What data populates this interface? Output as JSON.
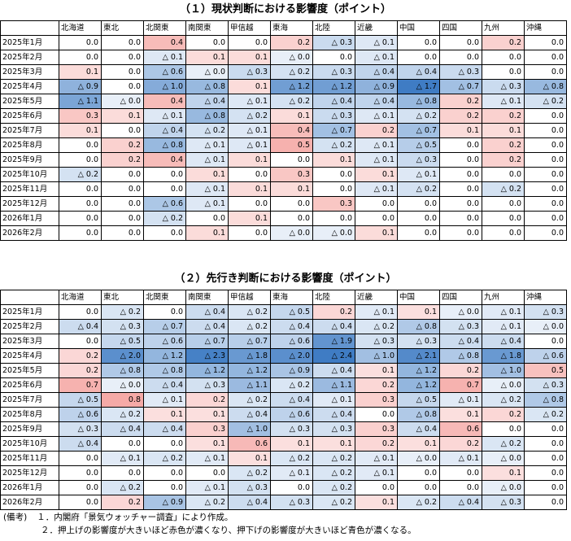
{
  "regions": [
    "北海道",
    "東北",
    "北関東",
    "南関東",
    "甲信越",
    "東海",
    "北陸",
    "近畿",
    "中国",
    "四国",
    "九州",
    "沖縄"
  ],
  "months": [
    "2025年1月",
    "2025年2月",
    "2025年3月",
    "2025年4月",
    "2025年5月",
    "2025年6月",
    "2025年7月",
    "2025年8月",
    "2025年9月",
    "2025年10月",
    "2025年11月",
    "2025年12月",
    "2026年1月",
    "2026年2月"
  ],
  "negative_prefix": "△",
  "colors": {
    "positive": "#e8322a",
    "negative": "#3f7cc4"
  },
  "current": {
    "title": "（１）現状判断における影響度（ポイント）",
    "values": [
      [
        0.0,
        0.0,
        0.4,
        0.0,
        0.0,
        0.2,
        -0.3,
        -0.1,
        0.0,
        0.0,
        0.2,
        0.0
      ],
      [
        0.0,
        0.0,
        -0.1,
        0.1,
        0.1,
        -0.0,
        0.0,
        -0.1,
        0.0,
        0.0,
        0.0,
        0.0
      ],
      [
        0.1,
        0.0,
        -0.6,
        -0.0,
        -0.3,
        -0.2,
        -0.3,
        -0.4,
        -0.4,
        -0.3,
        0.0,
        0.0
      ],
      [
        -0.9,
        0.0,
        -1.0,
        -0.8,
        0.1,
        -1.2,
        -1.2,
        -0.9,
        -1.7,
        -0.7,
        -0.3,
        -0.8
      ],
      [
        -1.1,
        -0.0,
        0.4,
        -0.4,
        -0.1,
        -0.2,
        -0.4,
        -0.4,
        -0.8,
        0.2,
        -0.1,
        -0.2
      ],
      [
        0.3,
        0.1,
        -0.1,
        -0.8,
        -0.2,
        0.1,
        -0.3,
        -0.1,
        -0.2,
        0.2,
        0.2,
        0.0
      ],
      [
        0.1,
        0.0,
        -0.4,
        -0.2,
        -0.1,
        0.4,
        -0.7,
        0.2,
        -0.7,
        0.1,
        0.1,
        0.0
      ],
      [
        0.0,
        0.2,
        -0.8,
        -0.1,
        -0.1,
        0.5,
        -0.2,
        -0.1,
        -0.5,
        0.0,
        0.2,
        0.0
      ],
      [
        0.0,
        0.2,
        0.4,
        -0.1,
        0.1,
        0.0,
        0.1,
        -0.1,
        -0.3,
        0.0,
        0.2,
        0.0
      ],
      [
        -0.2,
        0.0,
        0.0,
        0.1,
        0.0,
        0.3,
        0.0,
        0.1,
        -0.1,
        0.0,
        0.0,
        0.0
      ],
      [
        0.0,
        0.0,
        0.0,
        -0.1,
        0.1,
        0.1,
        0.0,
        -0.1,
        -0.2,
        0.0,
        -0.2,
        0.0
      ],
      [
        0.0,
        0.0,
        -0.6,
        -0.1,
        0.0,
        0.0,
        0.3,
        0.0,
        0.0,
        0.0,
        0.0,
        0.0
      ],
      [
        0.0,
        0.0,
        -0.2,
        0.0,
        0.1,
        0.0,
        0.0,
        0.0,
        0.0,
        0.0,
        0.0,
        0.0
      ],
      [
        0.0,
        0.0,
        0.0,
        0.1,
        0.0,
        -0.0,
        -0.0,
        0.1,
        0.0,
        0.0,
        0.0,
        0.0
      ]
    ]
  },
  "outlook": {
    "title": "（２）先行き判断における影響度（ポイント）",
    "values": [
      [
        0.0,
        -0.2,
        0.0,
        -0.4,
        -0.2,
        -0.5,
        0.2,
        -0.1,
        0.1,
        -0.0,
        -0.1,
        -0.3
      ],
      [
        -0.4,
        -0.3,
        -0.7,
        -0.4,
        -0.2,
        -0.4,
        -0.4,
        -0.2,
        -0.8,
        -0.3,
        -0.1,
        -0.0
      ],
      [
        0.0,
        -0.5,
        -0.6,
        -0.7,
        -0.7,
        -0.6,
        -1.9,
        -0.3,
        -0.3,
        -0.4,
        -0.4,
        0.0
      ],
      [
        0.2,
        -2.0,
        -1.2,
        -2.3,
        -1.8,
        -2.0,
        -2.4,
        -1.0,
        -2.1,
        -0.8,
        -1.8,
        -0.6
      ],
      [
        0.2,
        -0.8,
        -0.8,
        -1.2,
        -1.2,
        -0.9,
        -0.4,
        0.1,
        -1.2,
        0.2,
        -1.0,
        0.5
      ],
      [
        0.7,
        -0.0,
        -0.4,
        -0.3,
        -1.1,
        -0.2,
        -1.1,
        0.2,
        -1.2,
        0.7,
        -0.0,
        -0.3
      ],
      [
        -0.5,
        0.8,
        -0.1,
        0.2,
        -0.2,
        -0.4,
        -0.1,
        0.3,
        -0.5,
        -0.1,
        -0.2,
        -0.8
      ],
      [
        -0.6,
        -0.2,
        0.1,
        0.1,
        -0.4,
        -0.6,
        -0.4,
        0.0,
        -0.8,
        0.1,
        0.2,
        -0.2
      ],
      [
        -0.3,
        -0.4,
        -0.4,
        0.3,
        -1.0,
        -0.3,
        -0.3,
        0.3,
        -0.4,
        0.6,
        0.0,
        0.0
      ],
      [
        -0.4,
        0.0,
        0.0,
        0.1,
        0.6,
        0.1,
        0.1,
        0.2,
        0.1,
        0.2,
        -0.2,
        0.0
      ],
      [
        0.0,
        -0.1,
        -0.2,
        -0.1,
        0.1,
        -0.2,
        -0.2,
        -0.1,
        -0.0,
        -0.1,
        -0.0,
        0.0
      ],
      [
        0.0,
        0.0,
        0.0,
        0.0,
        -0.2,
        -0.1,
        -0.2,
        -0.1,
        0.0,
        0.0,
        0.1,
        0.0
      ],
      [
        0.0,
        -0.2,
        0.0,
        -0.1,
        -0.3,
        0.0,
        -0.2,
        0.0,
        0.0,
        0.0,
        -0.0,
        0.0
      ],
      [
        0.0,
        0.2,
        -0.9,
        -0.2,
        -0.4,
        -0.3,
        -0.2,
        0.1,
        -0.2,
        -0.4,
        -0.3,
        0.0
      ]
    ]
  },
  "notes": {
    "label": "(備考)",
    "line1": "１．内閣府「景気ウォッチャー調査」により作成。",
    "line2": "２．押上げの影響度が大きいほど赤色が濃くなり、押下げの影響度が大きいほど青色が濃くなる。"
  }
}
